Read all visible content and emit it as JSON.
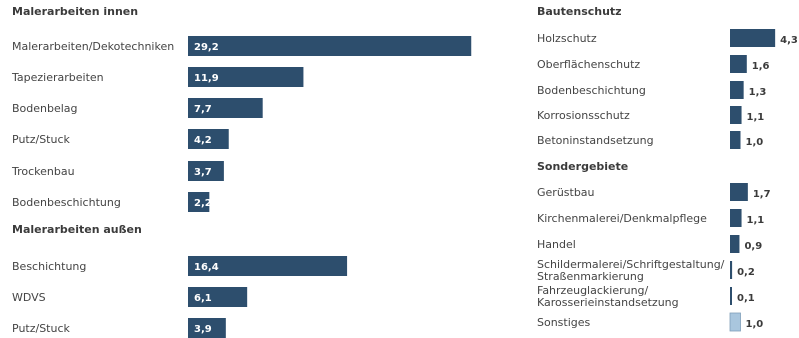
{
  "chart_data": [
    {
      "type": "bar",
      "orientation": "horizontal",
      "sections": [
        {
          "title": "Malerarbeiten innen",
          "categories": [
            "Malerarbeiten/Dekotechniken",
            "Tapezierarbeiten",
            "Bodenbelag",
            "Putz/Stuck",
            "Trockenbau",
            "Bodenbeschichtung"
          ],
          "values": [
            29.2,
            11.9,
            7.7,
            4.2,
            3.7,
            2.2
          ],
          "labels": [
            "29,2",
            "11,9",
            "7,7",
            "4,2",
            "3,7",
            "2,2"
          ]
        },
        {
          "title": "Malerarbeiten außen",
          "categories": [
            "Beschichtung",
            "WDVS",
            "Putz/Stuck"
          ],
          "values": [
            16.4,
            6.1,
            3.9
          ],
          "labels": [
            "16,4",
            "6,1",
            "3,9"
          ]
        }
      ],
      "label_position": "inside",
      "color": "#2d4e6d"
    },
    {
      "type": "bar",
      "orientation": "horizontal",
      "sections": [
        {
          "title": "Bautenschutz",
          "categories": [
            "Holzschutz",
            "Oberflächenschutz",
            "Bodenbeschichtung",
            "Korrosionsschutz",
            "Betoninstandsetzung"
          ],
          "values": [
            4.3,
            1.6,
            1.3,
            1.1,
            1.0
          ],
          "labels": [
            "4,3",
            "1,6",
            "1,3",
            "1,1",
            "1,0"
          ]
        },
        {
          "title": "Sondergebiete",
          "categories": [
            "Gerüstbau",
            "Kirchenmalerei/Denkmalpflege",
            "Handel",
            "Schildermalerei/Schriftgestaltung/ Straßenmarkierung",
            "Fahrzeuglackierung/ Karosserieinstandsetzung",
            "Sonstiges"
          ],
          "values": [
            1.7,
            1.1,
            0.9,
            0.2,
            0.1,
            1.0
          ],
          "labels": [
            "1,7",
            "1,1",
            "0,9",
            "0,2",
            "0,1",
            "1,0"
          ],
          "highlight_last": true
        }
      ],
      "label_position": "outside",
      "color": "#2d4e6d",
      "highlight_color": "#a9c6de"
    }
  ]
}
